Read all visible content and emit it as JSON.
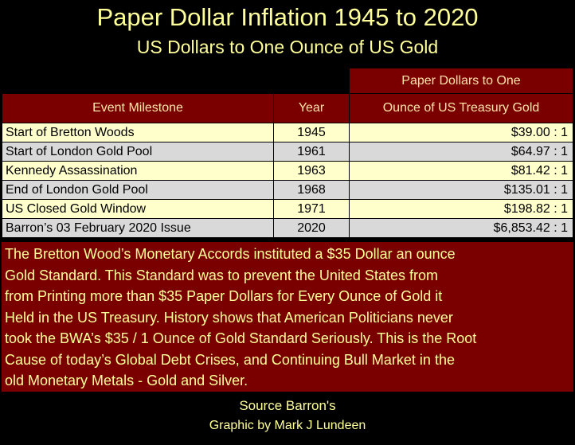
{
  "title": "Paper Dollar Inflation 1945 to 2020",
  "subtitle": "US Dollars to One Ounce of US Gold",
  "chart_data": {
    "type": "table",
    "columns": [
      "Event Milestone",
      "Year",
      "Paper Dollars to One Ounce of US Treasury Gold"
    ],
    "header_top": "Paper Dollars to One",
    "header_bottom": "Ounce of US Treasury Gold",
    "rows": [
      {
        "event": "Start of Bretton Woods",
        "year": "1945",
        "ratio": "$39.00 : 1"
      },
      {
        "event": "Start of London Gold Pool",
        "year": "1961",
        "ratio": "$64.97 : 1"
      },
      {
        "event": "Kennedy Assassination",
        "year": "1963",
        "ratio": "$81.42 : 1"
      },
      {
        "event": "End of London Gold Pool",
        "year": "1968",
        "ratio": "$135.01 : 1"
      },
      {
        "event": "US Closed Gold Window",
        "year": "1971",
        "ratio": "$198.82 : 1"
      },
      {
        "event": "Barron’s 03 February 2020 Issue",
        "year": "2020",
        "ratio": "$6,853.42 : 1"
      }
    ],
    "note_lines": [
      "The Bretton Wood’s Monetary Accords instituted a $35 Dollar an ounce",
      "Gold Standard.  This Standard was to prevent the United States from",
      "from Printing more than $35 Paper Dollars for Every Ounce of Gold it",
      "Held in the US Treasury. History shows that American Politicians never",
      "took the BWA’s $35 / 1 Ounce of Gold Standard Seriously.  This is the Root",
      "Cause of today’s Global Debt Crises, and Continuing Bull Market in the",
      "old Monetary Metals - Gold and Silver."
    ]
  },
  "footer": {
    "source": "Source Barron's",
    "credit": "Graphic by Mark J Lundeen"
  },
  "colors": {
    "background": "#000000",
    "header_fill": "#7a0000",
    "title_text": "#ffff99",
    "row_odd": "#ffffcc",
    "row_even": "#d9d9d9"
  }
}
